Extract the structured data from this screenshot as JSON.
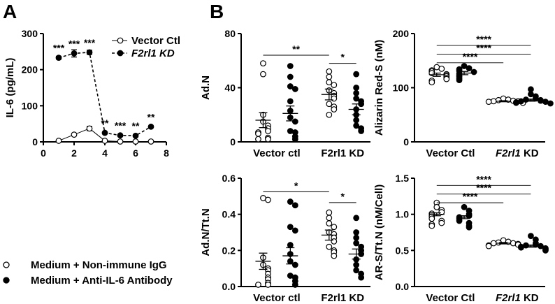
{
  "panel_labels": {
    "a": "A",
    "b": "B"
  },
  "bottom_legend": {
    "open_label": "Medium + Non-immune IgG",
    "filled_label": "Medium + Anti-IL-6 Antibody"
  },
  "chart_data": [
    {
      "id": "il6",
      "type": "line",
      "ylabel": "IL-6 (pg/mL)",
      "xlim": [
        0,
        8
      ],
      "ylim": [
        0,
        300
      ],
      "xticks": [
        "0",
        "2",
        "4",
        "6",
        "8"
      ],
      "yticks": [
        "0",
        "100",
        "200",
        "300"
      ],
      "legend": {
        "placement": "top-right",
        "vector_label": "Vector Ctl",
        "kd_label": "F2rl1 KD"
      },
      "series": [
        {
          "name": "Vector Ctl",
          "x": [
            1,
            2,
            3,
            4,
            5,
            6,
            7
          ],
          "y": [
            3,
            20,
            37,
            3,
            1,
            1,
            1
          ],
          "err": [
            0,
            3,
            6,
            0,
            0,
            0,
            0
          ]
        },
        {
          "name": "F2rl1 KD",
          "x": [
            1,
            2,
            3,
            4,
            5,
            6,
            7
          ],
          "y": [
            233,
            245,
            248,
            25,
            18,
            17,
            42
          ],
          "err": [
            4,
            10,
            6,
            2,
            2,
            1,
            2
          ]
        }
      ],
      "sig": [
        {
          "x": 1,
          "y": 233,
          "text": "***"
        },
        {
          "x": 2,
          "y": 245,
          "text": "***"
        },
        {
          "x": 3,
          "y": 248,
          "text": "***"
        },
        {
          "x": 4,
          "y": 25,
          "text": "**"
        },
        {
          "x": 5,
          "y": 18,
          "text": "***"
        },
        {
          "x": 6,
          "y": 17,
          "text": "**"
        },
        {
          "x": 7,
          "y": 42,
          "text": "**"
        }
      ]
    },
    {
      "id": "adn",
      "type": "scatter",
      "ylabel": "Ad.N",
      "ylim": [
        0,
        80
      ],
      "yticks": [
        "0",
        "40",
        "80"
      ],
      "xgroups": [
        {
          "label": "Vector ctl",
          "kd": false
        },
        {
          "label": "F2rl1 KD",
          "kd": false
        }
      ],
      "series": [
        {
          "name": "Vector ctl IgG",
          "fill": "open",
          "mean": 16,
          "sem": 5.5,
          "values": [
            58,
            50,
            20,
            15,
            12,
            10,
            8,
            7,
            6,
            3,
            2,
            2
          ]
        },
        {
          "name": "Vector ctl Anti-IL-6",
          "fill": "filled",
          "mean": 21,
          "sem": 5.5,
          "values": [
            56,
            48,
            41,
            39,
            30,
            23,
            18,
            15,
            8,
            7,
            4,
            2
          ]
        },
        {
          "name": "F2rl1 KD IgG",
          "fill": "open",
          "mean": 35,
          "sem": 4,
          "values": [
            52,
            48,
            44,
            42,
            38,
            36,
            34,
            32,
            28,
            26,
            24,
            20
          ]
        },
        {
          "name": "F2rl1 KD Anti-IL-6",
          "fill": "filled",
          "mean": 24,
          "sem": 4,
          "values": [
            50,
            40,
            36,
            32,
            30,
            28,
            24,
            20,
            16,
            12,
            10,
            8
          ]
        }
      ],
      "brackets": [
        {
          "from": 0,
          "to": 2,
          "y": 64,
          "text": "**"
        },
        {
          "from": 2,
          "to": 3,
          "y": 58,
          "text": "*"
        }
      ]
    },
    {
      "id": "alizarin",
      "type": "scatter",
      "ylabel": "Alizarin Red-S (nM)",
      "ylim": [
        0,
        200
      ],
      "yticks": [
        "0",
        "100",
        "200"
      ],
      "xgroups": [
        {
          "label": "Vector Ctl",
          "kd": false
        },
        {
          "label": "F2rl1 KD",
          "kd": true
        }
      ],
      "series": [
        {
          "name": "Vector Ctl IgG",
          "fill": "open",
          "mean": 124,
          "sem": 3,
          "values": [
            138,
            135,
            132,
            130,
            127,
            125,
            123,
            121,
            118,
            116,
            113,
            110
          ]
        },
        {
          "name": "Vector Ctl Anti-IL-6",
          "fill": "filled",
          "mean": 127,
          "sem": 3,
          "values": [
            140,
            136,
            134,
            131,
            129,
            126,
            123,
            120,
            117,
            114
          ]
        },
        {
          "name": "F2rl1 KD IgG",
          "fill": "open",
          "mean": 75,
          "sem": 1,
          "values": [
            80,
            78,
            77,
            76,
            75,
            75,
            74,
            73,
            72
          ]
        },
        {
          "name": "F2rl1 KD Anti-IL-6",
          "fill": "filled",
          "mean": 77,
          "sem": 2,
          "values": [
            97,
            88,
            84,
            80,
            78,
            77,
            76,
            75,
            74,
            73,
            72,
            71
          ]
        }
      ],
      "brackets": [
        {
          "from": 0,
          "to": 3,
          "y": 178,
          "text": "****"
        },
        {
          "from": 0,
          "to": 3,
          "y": 162,
          "text": "****"
        },
        {
          "from": 0,
          "to": 2,
          "y": 146,
          "text": "****"
        }
      ]
    },
    {
      "id": "adn_ttn",
      "type": "scatter",
      "ylabel": "Ad.N/Tt.N",
      "ylim": [
        0,
        0.6
      ],
      "yticks": [
        "0.0",
        "0.2",
        "0.4",
        "0.6"
      ],
      "xgroups": [
        {
          "label": "Vector ctl",
          "kd": false
        },
        {
          "label": "F2rl1 KD",
          "kd": false
        }
      ],
      "series": [
        {
          "name": "Vector ctl IgG",
          "fill": "open",
          "mean": 0.14,
          "sem": 0.045,
          "values": [
            0.49,
            0.48,
            0.16,
            0.12,
            0.1,
            0.09,
            0.07,
            0.05,
            0.04,
            0.02,
            0.01,
            0.01
          ]
        },
        {
          "name": "Vector ctl Anti-IL-6",
          "fill": "filled",
          "mean": 0.17,
          "sem": 0.045,
          "values": [
            0.47,
            0.45,
            0.33,
            0.31,
            0.23,
            0.18,
            0.14,
            0.12,
            0.06,
            0.05,
            0.03,
            0.01
          ]
        },
        {
          "name": "F2rl1 KD IgG",
          "fill": "open",
          "mean": 0.285,
          "sem": 0.028,
          "values": [
            0.41,
            0.38,
            0.35,
            0.33,
            0.3,
            0.29,
            0.27,
            0.25,
            0.22,
            0.2,
            0.19,
            0.17
          ]
        },
        {
          "name": "F2rl1 KD Anti-IL-6",
          "fill": "filled",
          "mean": 0.18,
          "sem": 0.028,
          "values": [
            0.38,
            0.3,
            0.27,
            0.24,
            0.22,
            0.2,
            0.18,
            0.15,
            0.12,
            0.09,
            0.07,
            0.05
          ]
        }
      ],
      "brackets": [
        {
          "from": 0,
          "to": 2,
          "y": 0.525,
          "text": "*"
        },
        {
          "from": 2,
          "to": 3,
          "y": 0.465,
          "text": "*"
        }
      ]
    },
    {
      "id": "ars_ttn",
      "type": "scatter",
      "ylabel": "AR-S/Tt.N (nM/Cell)",
      "ylim": [
        0,
        1.5
      ],
      "yticks": [
        "0.0",
        "0.5",
        "1.0",
        "1.5"
      ],
      "xgroups": [
        {
          "label": "Vector Ctl",
          "kd": false
        },
        {
          "label": "F2rl1 KD",
          "kd": true
        }
      ],
      "series": [
        {
          "name": "Vector Ctl IgG",
          "fill": "open",
          "mean": 1.0,
          "sem": 0.02,
          "values": [
            1.16,
            1.1,
            1.06,
            1.03,
            1.01,
            0.99,
            0.97,
            0.94,
            0.91,
            0.88,
            0.86,
            0.84
          ]
        },
        {
          "name": "Vector Ctl Anti-IL-6",
          "fill": "filled",
          "mean": 0.96,
          "sem": 0.02,
          "values": [
            1.1,
            1.05,
            1.0,
            0.98,
            0.96,
            0.94,
            0.91,
            0.88,
            0.84,
            0.82
          ]
        },
        {
          "name": "F2rl1 KD IgG",
          "fill": "open",
          "mean": 0.6,
          "sem": 0.01,
          "values": [
            0.64,
            0.62,
            0.61,
            0.6,
            0.6,
            0.59,
            0.58,
            0.57,
            0.56
          ]
        },
        {
          "name": "F2rl1 KD Anti-IL-6",
          "fill": "filled",
          "mean": 0.56,
          "sem": 0.015,
          "values": [
            0.7,
            0.65,
            0.6,
            0.58,
            0.57,
            0.56,
            0.55,
            0.54,
            0.53,
            0.52,
            0.51,
            0.5
          ]
        }
      ],
      "brackets": [
        {
          "from": 0,
          "to": 3,
          "y": 1.4,
          "text": "****"
        },
        {
          "from": 0,
          "to": 3,
          "y": 1.28,
          "text": "****"
        },
        {
          "from": 0,
          "to": 2,
          "y": 1.16,
          "text": "****"
        }
      ]
    }
  ]
}
